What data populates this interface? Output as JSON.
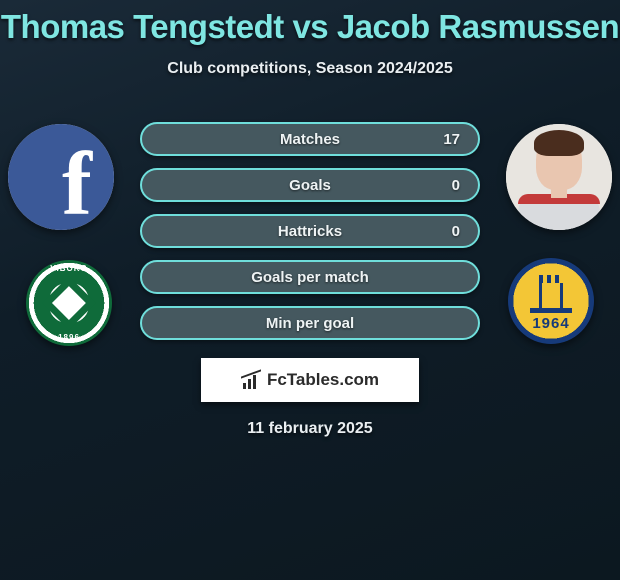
{
  "header": {
    "title": "Thomas Tengstedt vs Jacob Rasmussen",
    "title_color": "#7fe6e2",
    "subtitle": "Club competitions, Season 2024/2025",
    "date": "11 february 2025"
  },
  "background": {
    "gradient_from": "#1a2a38",
    "gradient_to": "#0c1820"
  },
  "players": {
    "left": {
      "name": "Thomas Tengstedt",
      "avatar_style": "facebook-placeholder"
    },
    "right": {
      "name": "Jacob Rasmussen",
      "avatar_style": "player-photo"
    }
  },
  "clubs": {
    "left": {
      "name": "Viborg FF",
      "primary_color": "#0f6b3a",
      "secondary_color": "#ffffff",
      "founded": "1896"
    },
    "right": {
      "name": "Brøndby IF",
      "primary_color": "#163a7a",
      "secondary_color": "#f3c636",
      "founded": "1964"
    }
  },
  "stats": [
    {
      "label": "Matches",
      "right_value": "17"
    },
    {
      "label": "Goals",
      "right_value": "0"
    },
    {
      "label": "Hattricks",
      "right_value": "0"
    },
    {
      "label": "Goals per match",
      "right_value": ""
    },
    {
      "label": "Min per goal",
      "right_value": ""
    }
  ],
  "pill_style": {
    "background": "#45585f",
    "border_color": "#6fdedb",
    "text_color": "#eef3f4",
    "height": 34,
    "radius": 17,
    "gap": 12,
    "font_size": 15
  },
  "brand": {
    "text": "FcTables.com",
    "background": "#ffffff",
    "text_color": "#2b2b2b"
  }
}
